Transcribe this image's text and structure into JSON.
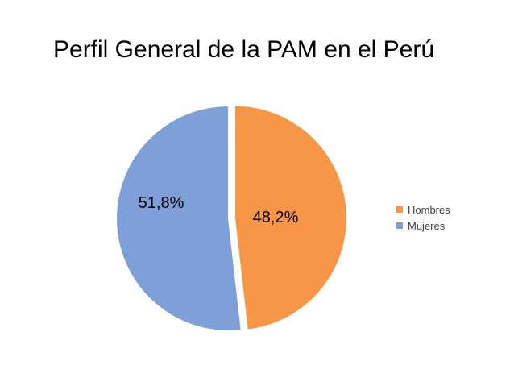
{
  "chart_data": {
    "type": "pie",
    "title": "Perfil General de la PAM en el Perú",
    "categories": [
      "Hombres",
      "Mujeres"
    ],
    "values": [
      48.2,
      51.8
    ],
    "data_labels": [
      "48,2%",
      "51,8%"
    ],
    "colors": [
      "#F79646",
      "#7F9FD9"
    ],
    "legend_position": "right",
    "exploded_slice": "Hombres"
  }
}
